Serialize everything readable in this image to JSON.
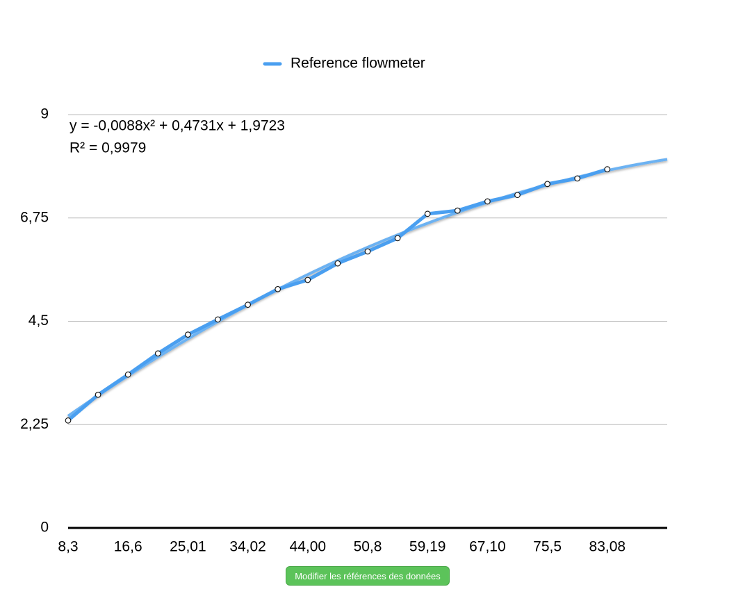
{
  "chart_data": {
    "type": "line",
    "categories": [
      "8,3",
      null,
      "16,6",
      null,
      "25,01",
      null,
      "34,02",
      null,
      "44,00",
      null,
      "50,8",
      null,
      "59,19",
      null,
      "67,10",
      null,
      "75,5",
      null,
      "83,08",
      null,
      null
    ],
    "series": [
      {
        "name": "Reference flowmeter",
        "color": "#4a9ff0",
        "values": [
          2.34,
          2.9,
          3.34,
          3.8,
          4.21,
          4.54,
          4.86,
          5.2,
          5.4,
          5.76,
          6.02,
          6.31,
          6.84,
          6.91,
          7.11,
          7.25,
          7.49,
          7.61,
          7.81,
          null,
          null
        ]
      }
    ],
    "trendline": {
      "equation": "y = -0,0088x² + 0,4731x + 1,9723",
      "r2": "R² = 0,9979",
      "coefficients": [
        -0.0088,
        0.4731,
        1.9723
      ],
      "color": "#6cb2f2"
    },
    "ylim": [
      0,
      9
    ],
    "yticks": [
      0,
      {
        "value": 2.25,
        "label": "2,25"
      },
      {
        "value": 4.5,
        "label": "4,5"
      },
      {
        "value": 6.75,
        "label": "6,75"
      },
      9
    ],
    "grid": true,
    "legend": "top"
  },
  "button": {
    "label": "Modifier les références des données"
  }
}
